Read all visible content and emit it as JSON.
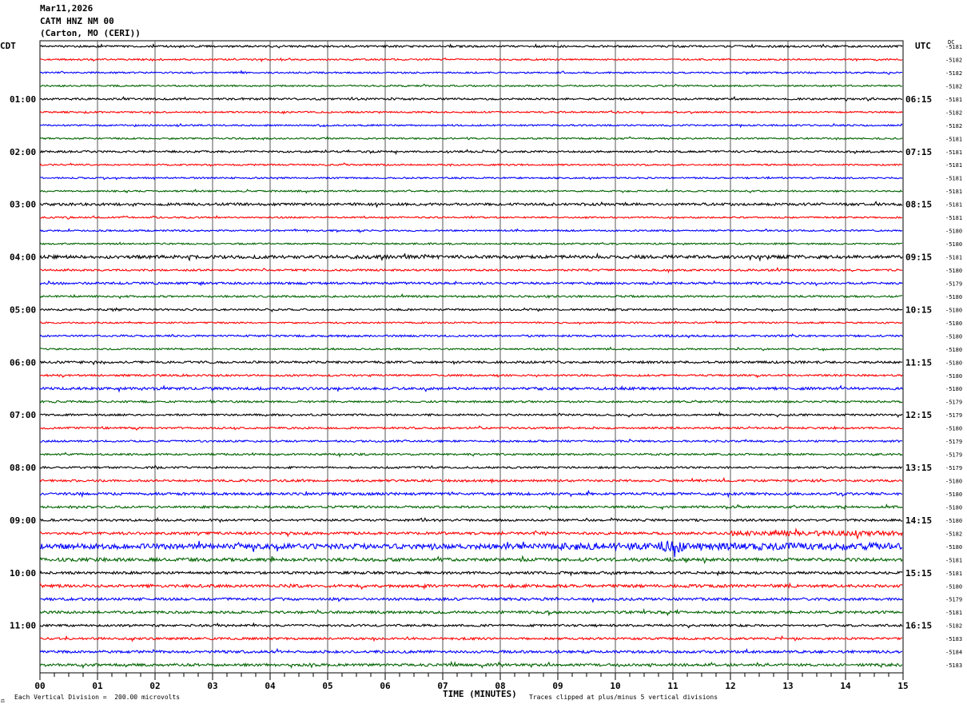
{
  "header": {
    "date": "Mar11,2026",
    "station": "CATM HNZ NM 00",
    "location": "(Carton, MO (CERI))"
  },
  "left_tz": "CDT",
  "right_tz": "UTC",
  "dc_label": "DC",
  "footer": {
    "scale_note": "Each Vertical Division =  200.00 microvolts",
    "clip_note": "Traces clipped at plus/minus 5 vertical divisions",
    "mark": "⚖"
  },
  "colors": {
    "background": "#ffffff",
    "grid": "#000000",
    "trace_cycle": [
      "#000000",
      "#ff0000",
      "#0000ff",
      "#006400"
    ]
  },
  "chart_data": {
    "type": "line",
    "title": "CATM HNZ NM 00",
    "xlabel": "TIME (MINUTES)",
    "ylabel": "",
    "xlim": [
      0,
      15
    ],
    "x_tick_labels": [
      "00",
      "01",
      "02",
      "03",
      "04",
      "05",
      "06",
      "07",
      "08",
      "09",
      "10",
      "11",
      "12",
      "13",
      "14",
      "15"
    ],
    "minor_ticks_per_minute": 4,
    "rows_per_hour": 4,
    "cdt_hour_labels": [
      "01:00",
      "02:00",
      "03:00",
      "04:00",
      "05:00",
      "06:00",
      "07:00",
      "08:00",
      "09:00",
      "10:00",
      "11:00"
    ],
    "utc_hour_labels": [
      "06:15",
      "07:15",
      "08:15",
      "09:15",
      "10:15",
      "11:15",
      "12:15",
      "13:15",
      "14:15",
      "15:15",
      "16:15"
    ],
    "dc_offsets": [
      -5181,
      -5182,
      -5182,
      -5182,
      -5181,
      -5182,
      -5182,
      -5181,
      -5181,
      -5181,
      -5181,
      -5181,
      -5181,
      -5181,
      -5180,
      -5180,
      -5181,
      -5180,
      -5179,
      -5180,
      -5180,
      -5180,
      -5180,
      -5180,
      -5180,
      -5180,
      -5180,
      -5179,
      -5179,
      -5180,
      -5179,
      -5179,
      -5179,
      -5180,
      -5180,
      -5180,
      -5180,
      -5182,
      -5180,
      -5181,
      -5181,
      -5180,
      -5179,
      -5181,
      -5182,
      -5183,
      -5184,
      -5183
    ],
    "row_noise": [
      1.2,
      1.0,
      1.0,
      1.0,
      1.2,
      1.0,
      1.0,
      1.0,
      1.2,
      1.0,
      1.0,
      1.0,
      1.6,
      1.0,
      1.0,
      1.0,
      2.0,
      1.2,
      1.4,
      1.2,
      1.2,
      1.0,
      1.2,
      1.0,
      1.4,
      1.2,
      1.6,
      1.2,
      1.2,
      1.2,
      1.2,
      1.2,
      1.2,
      1.4,
      1.6,
      1.4,
      1.4,
      1.6,
      3.2,
      2.0,
      1.6,
      1.8,
      1.6,
      1.6,
      1.4,
      1.4,
      1.6,
      1.6
    ],
    "events": [
      {
        "row": 16,
        "x_start": 5.0,
        "x_end": 7.5,
        "amplitude": 2.2
      },
      {
        "row": 37,
        "x_start": 12.0,
        "x_end": 15.0,
        "amplitude": 3.0
      },
      {
        "row": 38,
        "x_start": 9.0,
        "x_end": 15.0,
        "amplitude": 4.5
      },
      {
        "row": 38,
        "x_start": 10.7,
        "x_end": 11.2,
        "amplitude": 7.0
      }
    ],
    "grid": true
  }
}
